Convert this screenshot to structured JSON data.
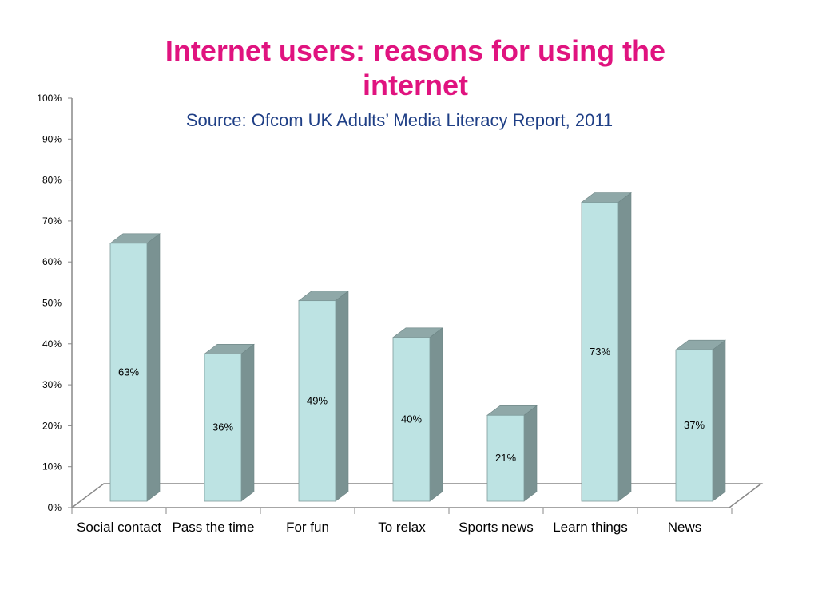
{
  "chart_data": {
    "type": "bar",
    "title": "Internet users: reasons for using the internet",
    "subtitle": "Source: Ofcom UK Adults’ Media Literacy Report, 2011",
    "categories": [
      "Social contact",
      "Pass the time",
      "For fun",
      "To relax",
      "Sports news",
      "Learn things",
      "News"
    ],
    "values": [
      63,
      36,
      49,
      40,
      21,
      73,
      37
    ],
    "data_labels": [
      "63%",
      "36%",
      "49%",
      "40%",
      "21%",
      "73%",
      "37%"
    ],
    "y_ticks": [
      "0%",
      "10%",
      "20%",
      "30%",
      "40%",
      "50%",
      "60%",
      "70%",
      "80%",
      "90%",
      "100%"
    ],
    "ylim": [
      0,
      100
    ],
    "xlabel": "",
    "ylabel": "",
    "grid": false,
    "legend": "none",
    "style": "3d",
    "colors": {
      "bar_front": "#bde3e3",
      "bar_top": "#8fa8a8",
      "bar_side": "#7a9292",
      "title": "#e0137f",
      "subtitle": "#1f3f86",
      "floor": "#888888"
    }
  }
}
